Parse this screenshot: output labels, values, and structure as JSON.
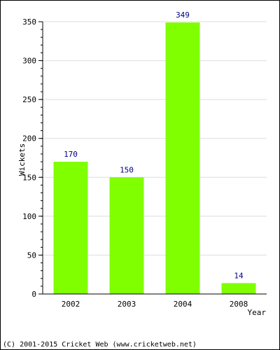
{
  "chart_data": {
    "type": "bar",
    "title": "",
    "xlabel": "Year",
    "ylabel": "Wickets",
    "categories": [
      "2002",
      "2003",
      "2004",
      "2008"
    ],
    "values": [
      170,
      150,
      349,
      14
    ],
    "data_labels": [
      "170",
      "150",
      "349",
      "14"
    ],
    "ylim": [
      0,
      350
    ],
    "yticks": [
      0,
      50,
      100,
      150,
      200,
      250,
      300,
      350
    ],
    "ytick_labels": [
      "0",
      "50",
      "100",
      "150",
      "200",
      "250",
      "300",
      "350"
    ],
    "minor_ticks_per_major": 5,
    "grid": true,
    "legend": "none",
    "colors": {
      "bar": "#7fff00",
      "label": "#00007f",
      "grid": "#dddddd",
      "axis": "#000000"
    }
  },
  "footer": {
    "copyright": "(C) 2001-2015 Cricket Web (www.cricketweb.net)"
  }
}
